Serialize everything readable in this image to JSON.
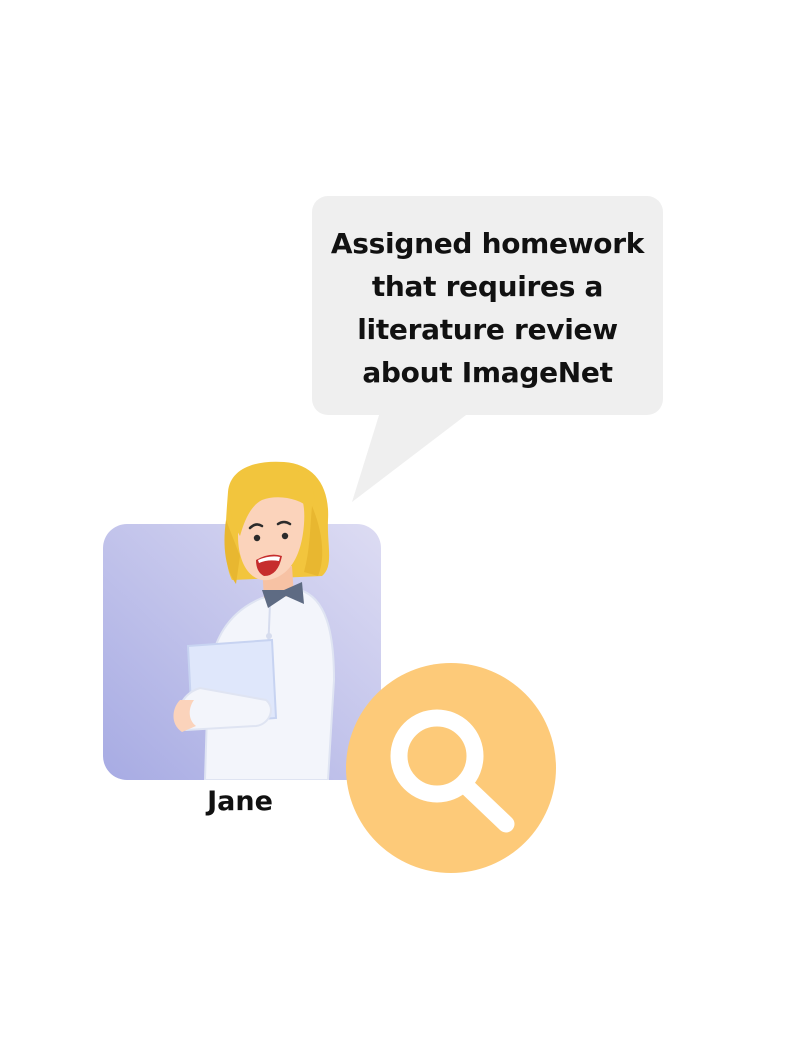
{
  "speech_bubble": {
    "lines": [
      "Assigned homework",
      "that requires a",
      "literature review",
      "about ImageNet"
    ]
  },
  "person": {
    "name": "Jane"
  },
  "icons": {
    "avatar": "woman-holding-folder-illustration",
    "search": "magnifier-icon"
  },
  "colors": {
    "bubble": "#efefef",
    "avatar_background": "#b3b5e6",
    "hair": "#f2c53d",
    "search_circle": "#fdca79"
  }
}
